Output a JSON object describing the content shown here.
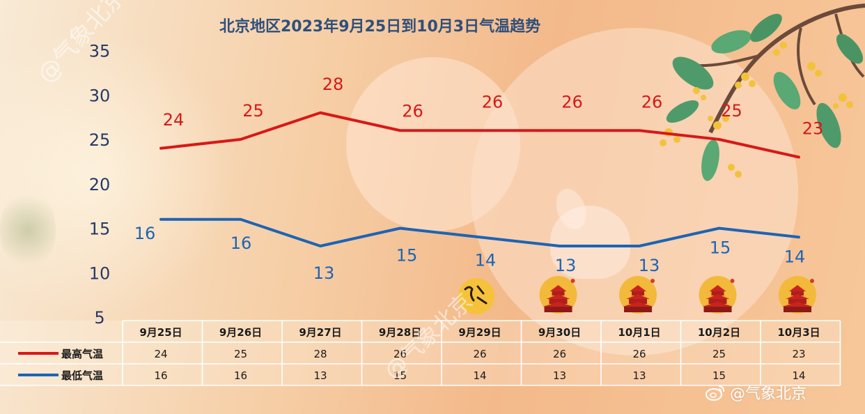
{
  "chart_data": {
    "type": "line",
    "title": "北京地区2023年9月25日到10月3日气温趋势",
    "categories": [
      "9月25日",
      "9月26日",
      "9月27日",
      "9月28日",
      "9月29日",
      "9月30日",
      "10月1日",
      "10月2日",
      "10月3日"
    ],
    "series": [
      {
        "name": "最高气温",
        "color": "#d81818",
        "values": [
          24,
          25,
          28,
          26,
          26,
          26,
          26,
          25,
          23
        ]
      },
      {
        "name": "最低气温",
        "color": "#1d64b5",
        "values": [
          16,
          16,
          13,
          15,
          14,
          13,
          13,
          15,
          14
        ]
      }
    ],
    "yticks": [
      5,
      10,
      15,
      20,
      25,
      30,
      35
    ],
    "ylim": [
      5,
      35
    ],
    "grid": false,
    "legend": "data-table-left"
  },
  "watermarks": [
    "@气象北京",
    "@气象北京"
  ],
  "weibo": {
    "icon": "weibo-icon",
    "label": "@气象北京"
  },
  "icons": [
    "mid-autumn-badge-icon",
    "temple-of-heaven-moon-icon"
  ]
}
